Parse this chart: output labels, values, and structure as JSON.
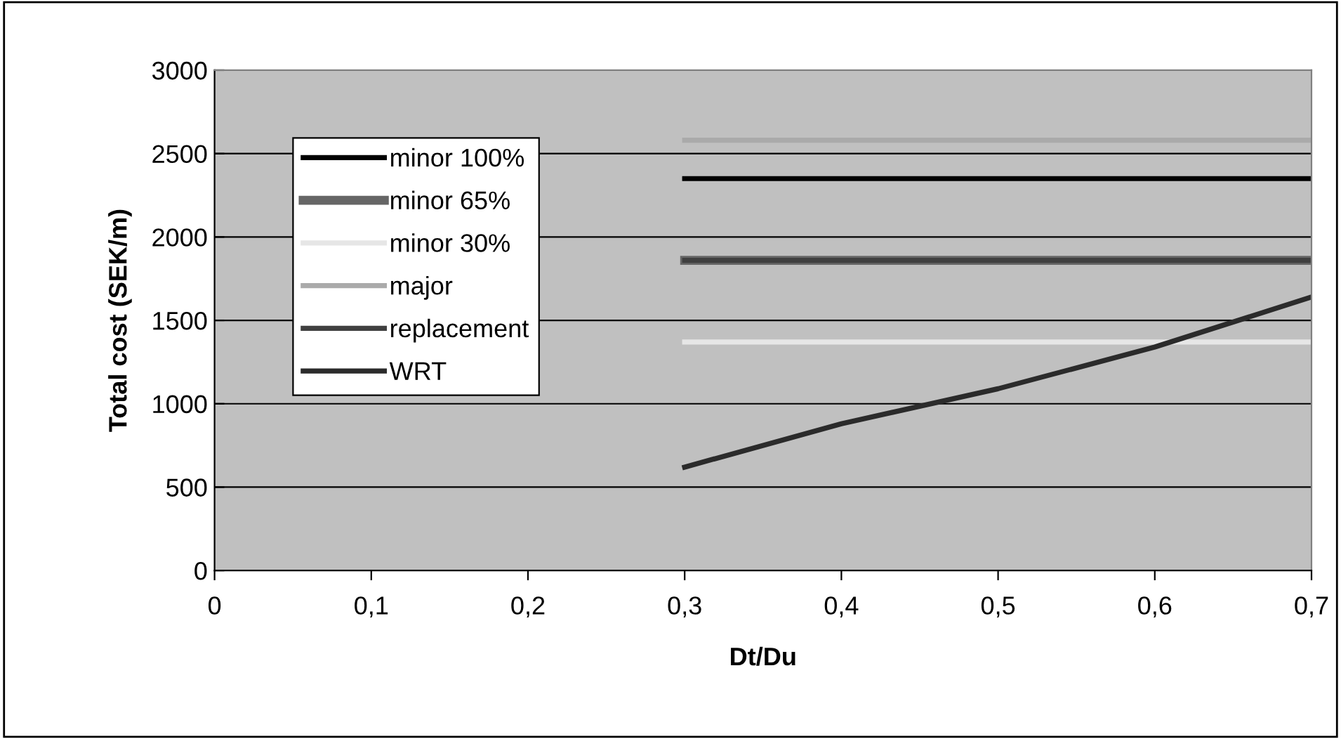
{
  "chart_data": {
    "type": "line",
    "xlabel": "Dt/Du",
    "ylabel": "Total cost (SEK/m)",
    "x": [
      0.3,
      0.4,
      0.5,
      0.6,
      0.7
    ],
    "series": [
      {
        "name": "minor 100%",
        "color": "#000000",
        "values": [
          2350,
          2350,
          2350,
          2350,
          2350
        ]
      },
      {
        "name": "minor 65%",
        "color": "#666666",
        "values": [
          1860,
          1860,
          1860,
          1860,
          1860
        ]
      },
      {
        "name": "minor 30%",
        "color": "#e6e6e6",
        "values": [
          1370,
          1370,
          1370,
          1370,
          1370
        ]
      },
      {
        "name": "major",
        "color": "#aaaaaa",
        "values": [
          2580,
          2580,
          2580,
          2580,
          2580
        ]
      },
      {
        "name": "replacement",
        "color": "#404040",
        "values": [
          1860,
          1860,
          1860,
          1860,
          1860
        ]
      },
      {
        "name": "WRT",
        "color": "#2b2b2b",
        "values": [
          620,
          880,
          1090,
          1340,
          1640
        ]
      }
    ],
    "xlim": [
      0,
      0.7
    ],
    "xticks": [
      {
        "value": 0,
        "label": "0"
      },
      {
        "value": 0.1,
        "label": "0,1"
      },
      {
        "value": 0.2,
        "label": "0,2"
      },
      {
        "value": 0.3,
        "label": "0,3"
      },
      {
        "value": 0.4,
        "label": "0,4"
      },
      {
        "value": 0.5,
        "label": "0,5"
      },
      {
        "value": 0.6,
        "label": "0,6"
      },
      {
        "value": 0.7,
        "label": "0,7"
      }
    ],
    "ylim": [
      0,
      3000
    ],
    "yticks": [
      0,
      500,
      1000,
      1500,
      2000,
      2500,
      3000
    ],
    "grid": "y",
    "legend": "top left",
    "marker": "none",
    "line_style": "solid"
  }
}
